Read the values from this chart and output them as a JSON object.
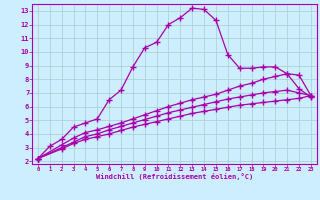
{
  "xlabel": "Windchill (Refroidissement éolien,°C)",
  "bg_color": "#cceeff",
  "grid_color": "#aacccc",
  "line_color": "#aa00aa",
  "xlim": [
    -0.5,
    23.5
  ],
  "ylim": [
    1.8,
    13.5
  ],
  "xticks": [
    0,
    1,
    2,
    3,
    4,
    5,
    6,
    7,
    8,
    9,
    10,
    11,
    12,
    13,
    14,
    15,
    16,
    17,
    18,
    19,
    20,
    21,
    22,
    23
  ],
  "yticks": [
    2,
    3,
    4,
    5,
    6,
    7,
    8,
    9,
    10,
    11,
    12,
    13
  ],
  "curve1_x": [
    0,
    1,
    2,
    3,
    4,
    5,
    6,
    7,
    8,
    9,
    10,
    11,
    12,
    13,
    14,
    15,
    16,
    17,
    18,
    19,
    20,
    21,
    22,
    23
  ],
  "curve1_y": [
    2.2,
    3.1,
    3.6,
    4.5,
    4.8,
    5.1,
    6.5,
    7.2,
    8.9,
    10.3,
    10.7,
    12.0,
    12.5,
    13.2,
    13.1,
    12.3,
    9.8,
    8.8,
    8.8,
    8.9,
    8.9,
    8.4,
    7.3,
    6.7
  ],
  "curve2_x": [
    0,
    2,
    3,
    4,
    5,
    6,
    7,
    8,
    9,
    10,
    11,
    12,
    13,
    14,
    15,
    16,
    17,
    18,
    19,
    20,
    21,
    22,
    23
  ],
  "curve2_y": [
    2.2,
    3.2,
    3.7,
    4.1,
    4.3,
    4.55,
    4.8,
    5.1,
    5.4,
    5.7,
    6.0,
    6.25,
    6.5,
    6.7,
    6.9,
    7.2,
    7.5,
    7.7,
    8.0,
    8.2,
    8.4,
    8.3,
    6.8
  ],
  "curve3_x": [
    0,
    2,
    3,
    4,
    5,
    6,
    7,
    8,
    9,
    10,
    11,
    12,
    13,
    14,
    15,
    16,
    17,
    18,
    19,
    20,
    21,
    22,
    23
  ],
  "curve3_y": [
    2.2,
    3.0,
    3.4,
    3.8,
    4.0,
    4.3,
    4.55,
    4.8,
    5.05,
    5.3,
    5.55,
    5.75,
    5.95,
    6.15,
    6.35,
    6.55,
    6.7,
    6.85,
    7.0,
    7.1,
    7.2,
    7.0,
    6.8
  ],
  "curve4_x": [
    0,
    2,
    3,
    4,
    5,
    6,
    7,
    8,
    9,
    10,
    11,
    12,
    13,
    14,
    15,
    16,
    17,
    18,
    19,
    20,
    21,
    22,
    23
  ],
  "curve4_y": [
    2.2,
    2.9,
    3.3,
    3.6,
    3.8,
    4.0,
    4.25,
    4.5,
    4.7,
    4.9,
    5.1,
    5.3,
    5.5,
    5.65,
    5.8,
    5.95,
    6.1,
    6.2,
    6.3,
    6.4,
    6.5,
    6.6,
    6.8
  ]
}
